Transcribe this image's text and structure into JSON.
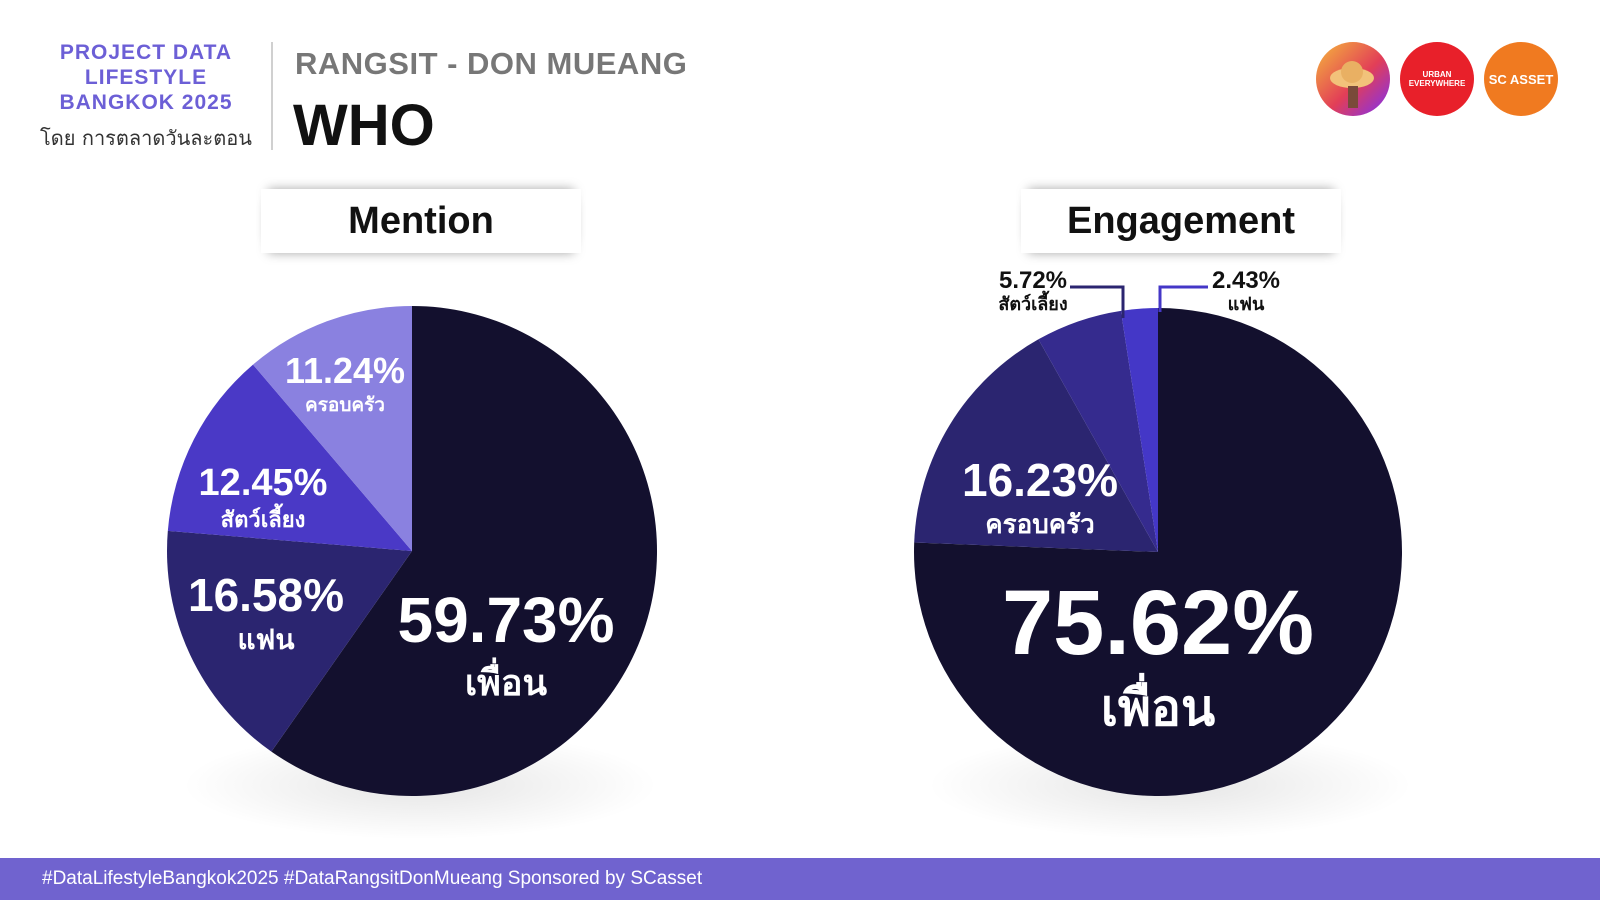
{
  "brand": {
    "line1": "PROJECT DATA",
    "line2": "LIFESTYLE",
    "line3": "BANGKOK 2025",
    "sub": "โดย การตลาดวันละตอน"
  },
  "header": {
    "subtitle": "RANGSIT - DON MUEANG",
    "title": "WHO"
  },
  "logos": [
    {
      "name": "การตลาดวันละตอน",
      "icon": "straw-hat-icon",
      "text": ""
    },
    {
      "name": "Urban Everywhere",
      "text": "URBAN EVERYWHERE"
    },
    {
      "name": "SC Asset",
      "text": "SC ASSET"
    }
  ],
  "colors": {
    "segment_1": "#13102e",
    "segment_2": "#2b2570",
    "segment_3": "#4a39c6",
    "segment_4": "#8a81e0",
    "engagement_segment_3": "#352b8e",
    "engagement_segment_4": "#4437c7",
    "accent": "#7063cf"
  },
  "chart_data": [
    {
      "type": "pie",
      "title": "Mention",
      "slices": [
        {
          "label": "เพื่อน",
          "value": 59.73,
          "display": "59.73%"
        },
        {
          "label": "แฟน",
          "value": 16.58,
          "display": "16.58%"
        },
        {
          "label": "สัตว์เลี้ยง",
          "value": 12.45,
          "display": "12.45%"
        },
        {
          "label": "ครอบครัว",
          "value": 11.24,
          "display": "11.24%"
        }
      ]
    },
    {
      "type": "pie",
      "title": "Engagement",
      "slices": [
        {
          "label": "เพื่อน",
          "value": 75.62,
          "display": "75.62%"
        },
        {
          "label": "ครอบครัว",
          "value": 16.23,
          "display": "16.23%"
        },
        {
          "label": "สัตว์เลี้ยง",
          "value": 5.72,
          "display": "5.72%"
        },
        {
          "label": "แฟน",
          "value": 2.43,
          "display": "2.43%"
        }
      ]
    }
  ],
  "footer": {
    "text": "#DataLifestyleBangkok2025 #DataRangsitDonMueang Sponsored by SCasset"
  }
}
